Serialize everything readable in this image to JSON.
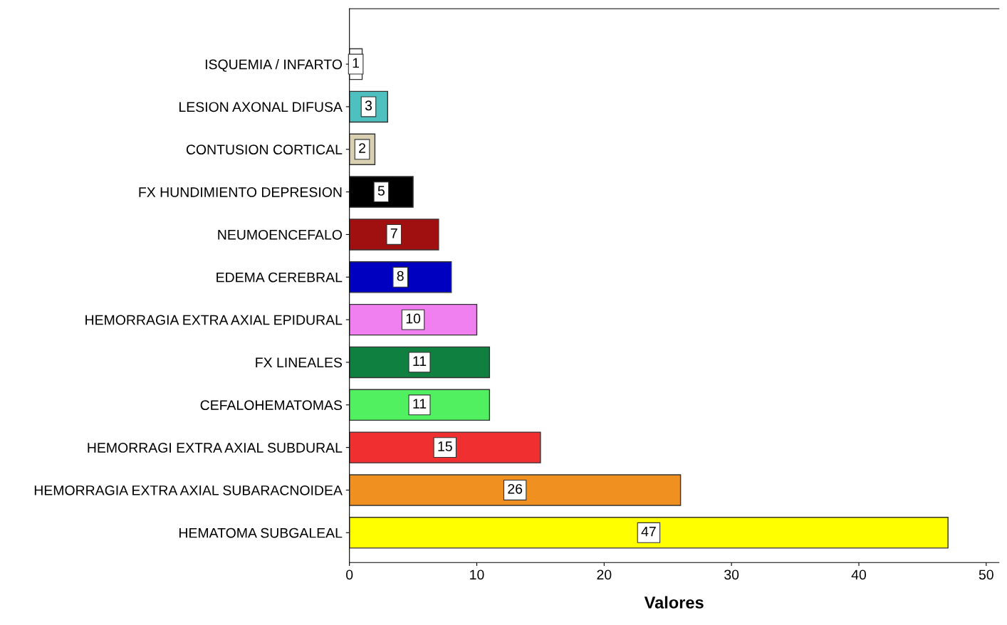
{
  "chart_data": {
    "type": "bar",
    "orientation": "horizontal",
    "xlabel": "Valores",
    "categories": [
      "ISQUEMIA / INFARTO",
      "LESION AXONAL DIFUSA",
      "CONTUSION CORTICAL",
      "FX HUNDIMIENTO DEPRESION",
      "NEUMOENCEFALO",
      "EDEMA CEREBRAL",
      "HEMORRAGIA EXTRA AXIAL EPIDURAL",
      "FX LINEALES",
      "CEFALOHEMATOMAS",
      "HEMORRAGI EXTRA AXIAL SUBDURAL",
      "HEMORRAGIA EXTRA AXIAL SUBARACNOIDEA",
      "HEMATOMA SUBGALEAL"
    ],
    "values": [
      1,
      3,
      2,
      5,
      7,
      8,
      10,
      11,
      11,
      15,
      26,
      47
    ],
    "colors": [
      "#ffffff",
      "#4fc0c0",
      "#d8d0b0",
      "#000000",
      "#a01010",
      "#0000c0",
      "#f080f0",
      "#108040",
      "#50f060",
      "#f03030",
      "#f09020",
      "#ffff00"
    ],
    "xlim": [
      0,
      51
    ],
    "xticks": [
      0,
      10,
      20,
      30,
      40,
      50
    ],
    "data_labels": true,
    "grid": false
  }
}
